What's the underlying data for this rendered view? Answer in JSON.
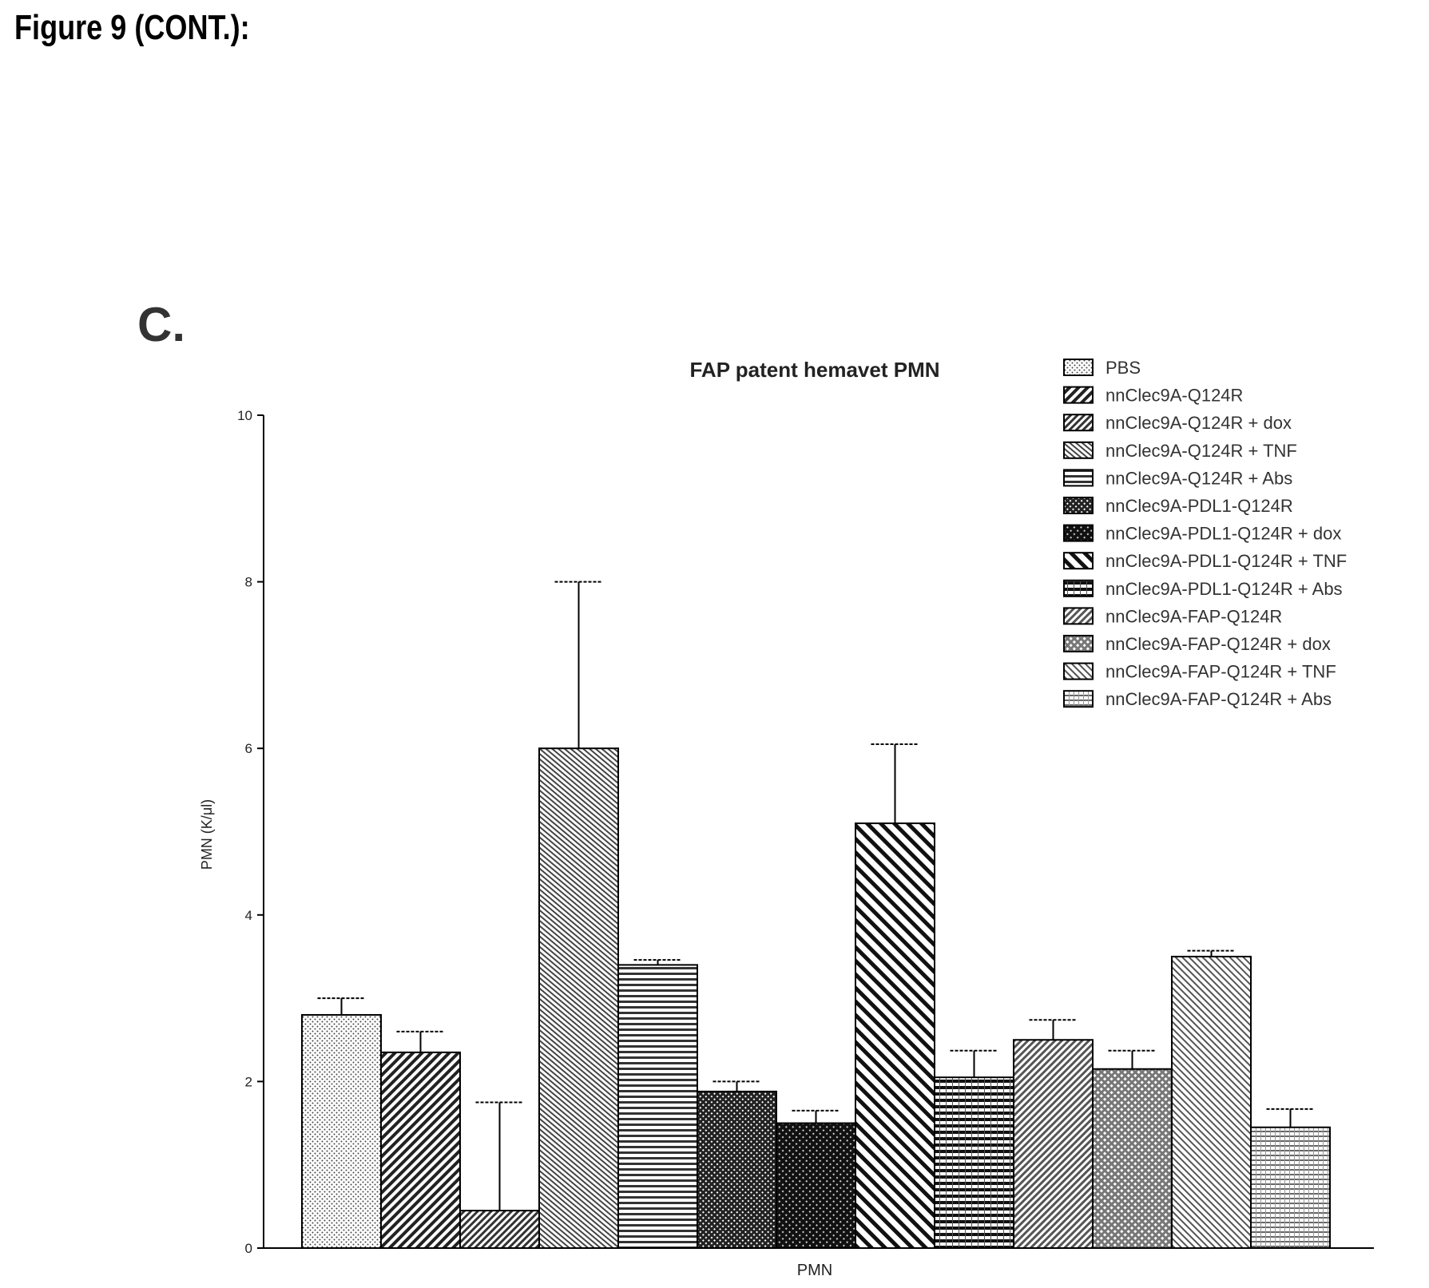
{
  "figure_label": "Figure 9 (CONT.):",
  "panel_label": "C.",
  "chart_data": {
    "type": "bar",
    "title": "FAP patent hemavet PMN",
    "xlabel": "PMN",
    "ylabel": "PMN (K/μl)",
    "categories": [
      "PMN"
    ],
    "ylim": [
      0,
      10
    ],
    "yticks": [
      0,
      2,
      4,
      6,
      8,
      10
    ],
    "legend_position": "top-right",
    "grid": false,
    "series": [
      {
        "name": "PBS",
        "value": 2.8,
        "error": 0.2,
        "pattern": "dots"
      },
      {
        "name": "nnClec9A-Q124R",
        "value": 2.35,
        "error": 0.25,
        "pattern": "diag-down"
      },
      {
        "name": "nnClec9A-Q124R + dox",
        "value": 0.45,
        "error": 1.3,
        "pattern": "diag-down-dense"
      },
      {
        "name": "nnClec9A-Q124R + TNF",
        "value": 6.0,
        "error": 2.0,
        "pattern": "diag-up-fine"
      },
      {
        "name": "nnClec9A-Q124R + Abs",
        "value": 3.4,
        "error": 0.06,
        "pattern": "horizontal"
      },
      {
        "name": "nnClec9A-PDL1-Q124R",
        "value": 1.88,
        "error": 0.12,
        "pattern": "cross-dense"
      },
      {
        "name": "nnClec9A-PDL1-Q124R + dox",
        "value": 1.5,
        "error": 0.15,
        "pattern": "cross-dark"
      },
      {
        "name": "nnClec9A-PDL1-Q124R + TNF",
        "value": 5.1,
        "error": 0.95,
        "pattern": "diag-up-bold"
      },
      {
        "name": "nnClec9A-PDL1-Q124R + Abs",
        "value": 2.05,
        "error": 0.32,
        "pattern": "horizontal-bold"
      },
      {
        "name": "nnClec9A-FAP-Q124R",
        "value": 2.5,
        "error": 0.24,
        "pattern": "diag-down-med"
      },
      {
        "name": "nnClec9A-FAP-Q124R + dox",
        "value": 2.15,
        "error": 0.22,
        "pattern": "diag-grid"
      },
      {
        "name": "nnClec9A-FAP-Q124R + TNF",
        "value": 3.5,
        "error": 0.07,
        "pattern": "diag-up-med"
      },
      {
        "name": "nnClec9A-FAP-Q124R + Abs",
        "value": 1.45,
        "error": 0.22,
        "pattern": "horizontal-light"
      }
    ]
  }
}
